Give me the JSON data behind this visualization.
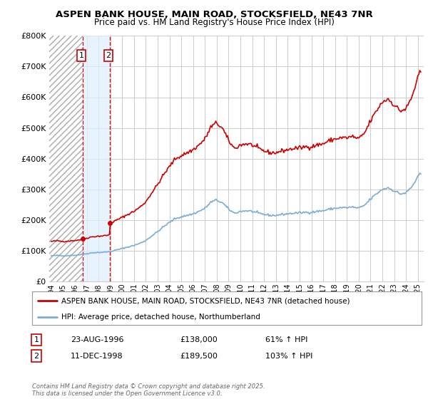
{
  "title1": "ASPEN BANK HOUSE, MAIN ROAD, STOCKSFIELD, NE43 7NR",
  "title2": "Price paid vs. HM Land Registry's House Price Index (HPI)",
  "legend_label_red": "ASPEN BANK HOUSE, MAIN ROAD, STOCKSFIELD, NE43 7NR (detached house)",
  "legend_label_blue": "HPI: Average price, detached house, Northumberland",
  "annotation1_date": "23-AUG-1996",
  "annotation1_price": "£138,000",
  "annotation1_hpi": "61% ↑ HPI",
  "annotation1_year": 1996.64,
  "annotation1_value": 138000,
  "annotation2_date": "11-DEC-1998",
  "annotation2_price": "£189,500",
  "annotation2_hpi": "103% ↑ HPI",
  "annotation2_year": 1998.94,
  "annotation2_value": 189500,
  "copyright_text": "Contains HM Land Registry data © Crown copyright and database right 2025.\nThis data is licensed under the Open Government Licence v3.0.",
  "red_color": "#cc0000",
  "blue_color": "#7aacd6",
  "background_color": "#ffffff",
  "grid_color": "#cccccc",
  "ylim": [
    0,
    800000
  ],
  "xlim_start": 1993.83,
  "xlim_end": 2025.5
}
